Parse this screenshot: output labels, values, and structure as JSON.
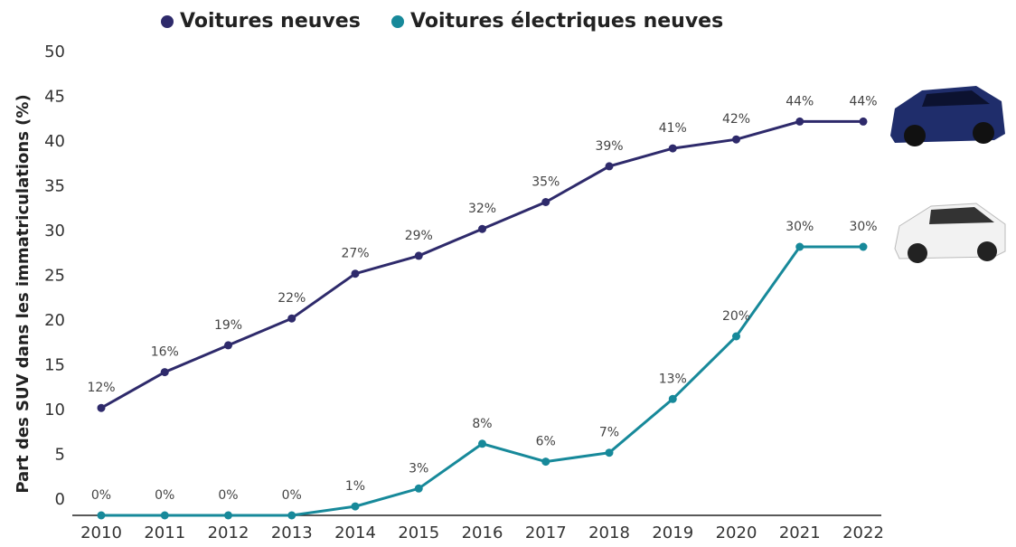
{
  "chart_data": {
    "type": "line",
    "y_label": "Part des SUV dans les immatriculations (%)",
    "categories": [
      "2010",
      "2011",
      "2012",
      "2013",
      "2014",
      "2015",
      "2016",
      "2017",
      "2018",
      "2019",
      "2020",
      "2021",
      "2022"
    ],
    "series": [
      {
        "name": "Voitures neuves",
        "color": "#2e2a6b",
        "values": [
          12,
          16,
          19,
          22,
          27,
          29,
          32,
          35,
          39,
          41,
          42,
          44,
          44
        ],
        "value_labels": [
          "12%",
          "16%",
          "19%",
          "22%",
          "27%",
          "29%",
          "32%",
          "35%",
          "39%",
          "41%",
          "42%",
          "44%",
          "44%"
        ]
      },
      {
        "name": "Voitures électriques neuves",
        "color": "#17899a",
        "values": [
          0,
          0,
          0,
          0,
          1,
          3,
          8,
          6,
          7,
          13,
          20,
          30,
          30
        ],
        "value_labels": [
          "0%",
          "0%",
          "0%",
          "0%",
          "1%",
          "3%",
          "8%",
          "6%",
          "7%",
          "13%",
          "20%",
          "30%",
          "30%"
        ]
      }
    ],
    "ylim": [
      0,
      50
    ],
    "yticks": [
      0,
      5,
      10,
      15,
      20,
      25,
      30,
      35,
      40,
      45,
      50
    ],
    "grid": false
  }
}
